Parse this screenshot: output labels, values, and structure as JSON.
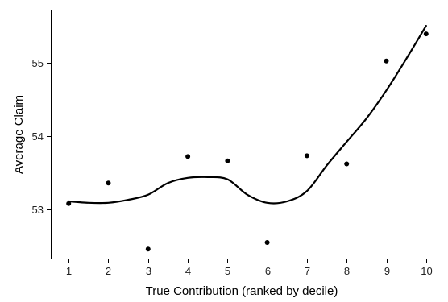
{
  "chart_data": {
    "type": "scatter",
    "title": "",
    "xlabel": "True Contribution (ranked by decile)",
    "ylabel": "Average Claim",
    "xlim": [
      0.55,
      10.45
    ],
    "ylim": [
      52.32,
      55.72
    ],
    "x_ticks": [
      1,
      2,
      3,
      4,
      5,
      6,
      7,
      8,
      9,
      10
    ],
    "y_ticks": [
      53,
      54,
      55
    ],
    "grid": false,
    "legend": "none",
    "series": [
      {
        "kind": "points",
        "x": [
          1,
          2,
          3,
          4,
          5,
          6,
          7,
          8,
          9,
          10
        ],
        "y": [
          53.08,
          53.36,
          52.46,
          53.72,
          53.66,
          52.55,
          53.73,
          53.62,
          55.02,
          55.39
        ]
      },
      {
        "kind": "smooth",
        "x": [
          1,
          1.5,
          2,
          2.5,
          3,
          3.5,
          4,
          4.5,
          5,
          5.5,
          6,
          6.5,
          7,
          7.5,
          8,
          8.5,
          9,
          9.5,
          10
        ],
        "y": [
          53.11,
          53.09,
          53.09,
          53.13,
          53.2,
          53.36,
          53.43,
          53.44,
          53.41,
          53.2,
          53.09,
          53.11,
          53.25,
          53.6,
          53.92,
          54.24,
          54.62,
          55.05,
          55.5
        ]
      }
    ],
    "colors": {
      "points": "#000000",
      "line": "#000000"
    }
  }
}
